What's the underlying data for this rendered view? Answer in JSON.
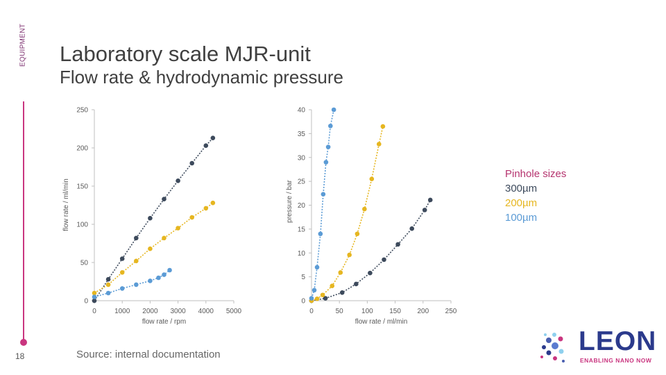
{
  "side_label": "EQUIPMENT",
  "page_number": "18",
  "title": "Laboratory scale MJR-unit",
  "subtitle": "Flow rate & hydrodynamic pressure",
  "source": "Source: internal documentation",
  "legend": {
    "title": "Pinhole sizes",
    "items": [
      {
        "label": "300µm",
        "color": "#3d4a5c"
      },
      {
        "label": "200µm",
        "color": "#e6b620"
      },
      {
        "label": "100µm",
        "color": "#5b9bd5"
      }
    ],
    "title_color": "#b5336e"
  },
  "logo": {
    "name": "LEON",
    "tagline": "ENABLING NANO NOW"
  },
  "chart_data": [
    {
      "type": "line",
      "xlabel": "flow rate / rpm",
      "ylabel": "flow rate / ml/min",
      "xlim": [
        0,
        5000
      ],
      "ylim": [
        0,
        250
      ],
      "xticks": [
        0,
        1000,
        2000,
        3000,
        4000,
        5000
      ],
      "yticks": [
        0,
        50,
        100,
        150,
        200,
        250
      ],
      "grid": false,
      "series": [
        {
          "name": "300µm",
          "color": "#3d4a5c",
          "x": [
            0,
            500,
            1000,
            1500,
            2000,
            2500,
            3000,
            3500,
            4000,
            4250
          ],
          "y": [
            0,
            28,
            55,
            82,
            108,
            133,
            157,
            180,
            203,
            213
          ]
        },
        {
          "name": "200µm",
          "color": "#e6b620",
          "x": [
            0,
            500,
            1000,
            1500,
            2000,
            2500,
            3000,
            3500,
            4000,
            4250
          ],
          "y": [
            10,
            21,
            37,
            52,
            68,
            82,
            95,
            109,
            121,
            128
          ]
        },
        {
          "name": "100µm",
          "color": "#5b9bd5",
          "x": [
            0,
            500,
            1000,
            1500,
            2000,
            2300,
            2500,
            2700
          ],
          "y": [
            5,
            10,
            16,
            21,
            26,
            30,
            34,
            40
          ]
        }
      ]
    },
    {
      "type": "line",
      "xlabel": "flow rate / ml/min",
      "ylabel": "pressure / bar",
      "xlim": [
        0,
        250
      ],
      "ylim": [
        0,
        40
      ],
      "xticks": [
        0,
        50,
        100,
        150,
        200,
        250
      ],
      "yticks": [
        0,
        5,
        10,
        15,
        20,
        25,
        30,
        35,
        40
      ],
      "grid": false,
      "series": [
        {
          "name": "300µm",
          "color": "#3d4a5c",
          "x": [
            0,
            25,
            55,
            80,
            105,
            130,
            155,
            180,
            203,
            213
          ],
          "y": [
            0,
            0.5,
            1.7,
            3.5,
            5.8,
            8.6,
            11.8,
            15.1,
            19.0,
            21.1
          ]
        },
        {
          "name": "200µm",
          "color": "#e6b620",
          "x": [
            0,
            10,
            20,
            37,
            52,
            68,
            82,
            95,
            108,
            121,
            128
          ],
          "y": [
            0,
            0.4,
            1.2,
            3.1,
            5.9,
            9.6,
            14.0,
            19.2,
            25.5,
            32.8,
            36.5
          ]
        },
        {
          "name": "100µm",
          "color": "#5b9bd5",
          "x": [
            0,
            5,
            10,
            16,
            21,
            26,
            30,
            34,
            40
          ],
          "y": [
            0.5,
            2.2,
            7.0,
            14.0,
            22.3,
            29.0,
            32.2,
            36.6,
            40
          ]
        }
      ]
    }
  ]
}
